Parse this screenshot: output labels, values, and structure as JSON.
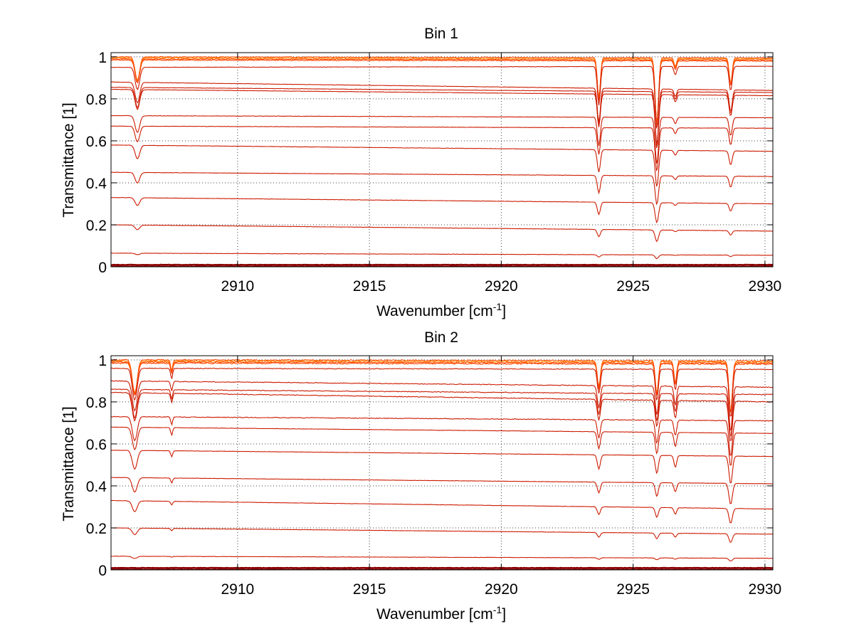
{
  "chart_data": [
    {
      "type": "line",
      "title": "Bin 1",
      "xlabel": "Wavenumber [cm",
      "xlabel_sup": "-1",
      "xlabel_suffix": "]",
      "ylabel": "Transmittance [1]",
      "xlim": [
        2905.2,
        2930.3
      ],
      "ylim": [
        0,
        1.02
      ],
      "xticks": [
        2910,
        2915,
        2920,
        2925,
        2930
      ],
      "yticks": [
        0,
        0.2,
        0.4,
        0.6,
        0.8,
        1
      ],
      "ytick_labels": [
        "0",
        "0.2",
        "0.4",
        "0.6",
        "0.8",
        "1"
      ],
      "grid": true,
      "base_levels_start": [
        1.0,
        0.995,
        0.99,
        0.985,
        0.95,
        0.88,
        0.855,
        0.845,
        0.72,
        0.67,
        0.58,
        0.45,
        0.33,
        0.2,
        0.065,
        0.01,
        0.003
      ],
      "base_levels_end": [
        0.995,
        0.99,
        0.985,
        0.98,
        0.955,
        0.84,
        0.83,
        0.815,
        0.71,
        0.66,
        0.55,
        0.43,
        0.3,
        0.17,
        0.055,
        0.01,
        0.003
      ],
      "absorption_lines": [
        {
          "x": 2906.2,
          "depth": 0.32,
          "width": 0.12
        },
        {
          "x": 2923.7,
          "depth": 0.55,
          "width": 0.08
        },
        {
          "x": 2925.9,
          "depth": 0.9,
          "width": 0.09
        },
        {
          "x": 2926.6,
          "depth": 0.12,
          "width": 0.07
        },
        {
          "x": 2928.7,
          "depth": 0.35,
          "width": 0.08
        }
      ],
      "series_colors": [
        "#ff8c00",
        "#1f3fbf",
        "#ff4500",
        "#e03000",
        "#d02000",
        "#c01800",
        "#b01000",
        "#a00800",
        "#8b0000"
      ]
    },
    {
      "type": "line",
      "title": "Bin 2",
      "xlabel": "Wavenumber [cm",
      "xlabel_sup": "-1",
      "xlabel_suffix": "]",
      "ylabel": "Transmittance [1]",
      "xlim": [
        2905.2,
        2930.3
      ],
      "ylim": [
        0,
        1.02
      ],
      "xticks": [
        2910,
        2915,
        2920,
        2925,
        2930
      ],
      "yticks": [
        0,
        0.2,
        0.4,
        0.6,
        0.8,
        1
      ],
      "ytick_labels": [
        "0",
        "0.2",
        "0.4",
        "0.6",
        "0.8",
        "1"
      ],
      "grid": true,
      "base_levels_start": [
        1.0,
        0.995,
        0.99,
        0.985,
        0.96,
        0.9,
        0.86,
        0.845,
        0.73,
        0.68,
        0.57,
        0.44,
        0.33,
        0.2,
        0.065,
        0.01,
        0.003
      ],
      "base_levels_end": [
        0.995,
        0.99,
        0.985,
        0.98,
        0.955,
        0.87,
        0.835,
        0.8,
        0.71,
        0.65,
        0.54,
        0.41,
        0.29,
        0.17,
        0.055,
        0.01,
        0.003
      ],
      "absorption_lines": [
        {
          "x": 2906.1,
          "depth": 0.45,
          "width": 0.13
        },
        {
          "x": 2907.5,
          "depth": 0.15,
          "width": 0.05
        },
        {
          "x": 2923.7,
          "depth": 0.35,
          "width": 0.08
        },
        {
          "x": 2925.9,
          "depth": 0.45,
          "width": 0.08
        },
        {
          "x": 2926.6,
          "depth": 0.3,
          "width": 0.07
        },
        {
          "x": 2928.7,
          "depth": 0.7,
          "width": 0.09
        }
      ],
      "series_colors": [
        "#ff8c00",
        "#1f3fbf",
        "#ff4500",
        "#e03000",
        "#d02000",
        "#c01800",
        "#b01000",
        "#a00800",
        "#8b0000"
      ]
    }
  ]
}
